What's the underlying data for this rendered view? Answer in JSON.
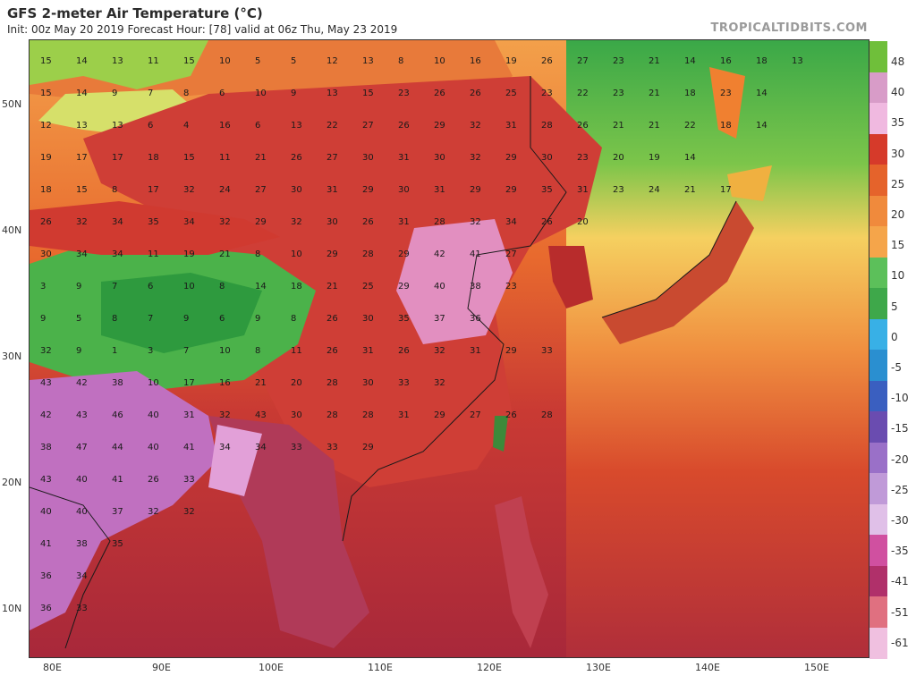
{
  "header": {
    "title": "GFS 2-meter Air Temperature (°C)",
    "subtitle": "Init: 00z May 20 2019   Forecast Hour: [78]   valid at 06z Thu, May 23 2019",
    "brand": "TROPICALTIDBITS.COM"
  },
  "map_axes": {
    "lat_labels": [
      "50N",
      "40N",
      "30N",
      "20N",
      "10N"
    ],
    "lon_labels": [
      "80E",
      "90E",
      "100E",
      "110E",
      "120E",
      "130E",
      "140E",
      "150E"
    ]
  },
  "colorbar": {
    "labels": [
      "48",
      "40",
      "35",
      "30",
      "25",
      "20",
      "15",
      "10",
      "5",
      "0",
      "-5",
      "-10",
      "-15",
      "-20",
      "-25",
      "-30",
      "-35",
      "-41",
      "-51",
      "-61"
    ],
    "colors": [
      "#6fbf3a",
      "#d89cc8",
      "#f0b9e0",
      "#d63a2a",
      "#e5632b",
      "#f08a3c",
      "#f5a54a",
      "#5cc05a",
      "#3ea84a",
      "#38b0e6",
      "#2a8fd0",
      "#3a5fc0",
      "#6a4cb0",
      "#9a70c8",
      "#c09ad8",
      "#e0c0e8",
      "#d050a0",
      "#b0306a",
      "#e07080",
      "#f0c0e0"
    ]
  },
  "temperature_values": [
    [
      "15",
      "14",
      "13",
      "11",
      "15",
      "10",
      "5",
      "5",
      "12",
      "13",
      "8",
      "10",
      "16",
      "19",
      "26",
      "27",
      "23",
      "21",
      "14",
      "16",
      "18",
      "13"
    ],
    [
      "15",
      "14",
      "9",
      "7",
      "8",
      "6",
      "10",
      "9",
      "13",
      "15",
      "23",
      "26",
      "26",
      "25",
      "23",
      "22",
      "23",
      "21",
      "18",
      "23",
      "14"
    ],
    [
      "12",
      "13",
      "13",
      "6",
      "4",
      "16",
      "6",
      "13",
      "22",
      "27",
      "26",
      "29",
      "32",
      "31",
      "28",
      "26",
      "21",
      "21",
      "22",
      "18",
      "14"
    ],
    [
      "19",
      "17",
      "17",
      "18",
      "15",
      "11",
      "21",
      "26",
      "27",
      "30",
      "31",
      "30",
      "32",
      "29",
      "30",
      "23",
      "20",
      "19",
      "14"
    ],
    [
      "18",
      "15",
      "8",
      "17",
      "32",
      "24",
      "27",
      "30",
      "31",
      "29",
      "30",
      "31",
      "29",
      "29",
      "35",
      "31",
      "23",
      "24",
      "21",
      "17"
    ],
    [
      "26",
      "32",
      "34",
      "35",
      "34",
      "32",
      "29",
      "32",
      "30",
      "26",
      "31",
      "28",
      "32",
      "34",
      "26",
      "20"
    ],
    [
      "30",
      "34",
      "34",
      "11",
      "19",
      "21",
      "8",
      "10",
      "29",
      "28",
      "29",
      "42",
      "41",
      "27"
    ],
    [
      "3",
      "9",
      "7",
      "6",
      "10",
      "8",
      "14",
      "18",
      "21",
      "25",
      "29",
      "40",
      "38",
      "23"
    ],
    [
      "9",
      "5",
      "8",
      "7",
      "9",
      "6",
      "9",
      "8",
      "26",
      "30",
      "35",
      "37",
      "36"
    ],
    [
      "32",
      "9",
      "1",
      "3",
      "7",
      "10",
      "8",
      "11",
      "26",
      "31",
      "26",
      "32",
      "31",
      "29",
      "33"
    ],
    [
      "43",
      "42",
      "38",
      "10",
      "17",
      "16",
      "21",
      "20",
      "28",
      "30",
      "33",
      "32"
    ],
    [
      "42",
      "43",
      "46",
      "40",
      "31",
      "32",
      "43",
      "30",
      "28",
      "28",
      "31",
      "29",
      "27",
      "26",
      "28"
    ],
    [
      "38",
      "47",
      "44",
      "40",
      "41",
      "34",
      "34",
      "33",
      "33",
      "29"
    ],
    [
      "43",
      "40",
      "41",
      "26",
      "33"
    ],
    [
      "40",
      "40",
      "37",
      "32",
      "32"
    ],
    [
      "41",
      "38",
      "35"
    ],
    [
      "36",
      "34"
    ],
    [
      "36",
      "33"
    ]
  ]
}
